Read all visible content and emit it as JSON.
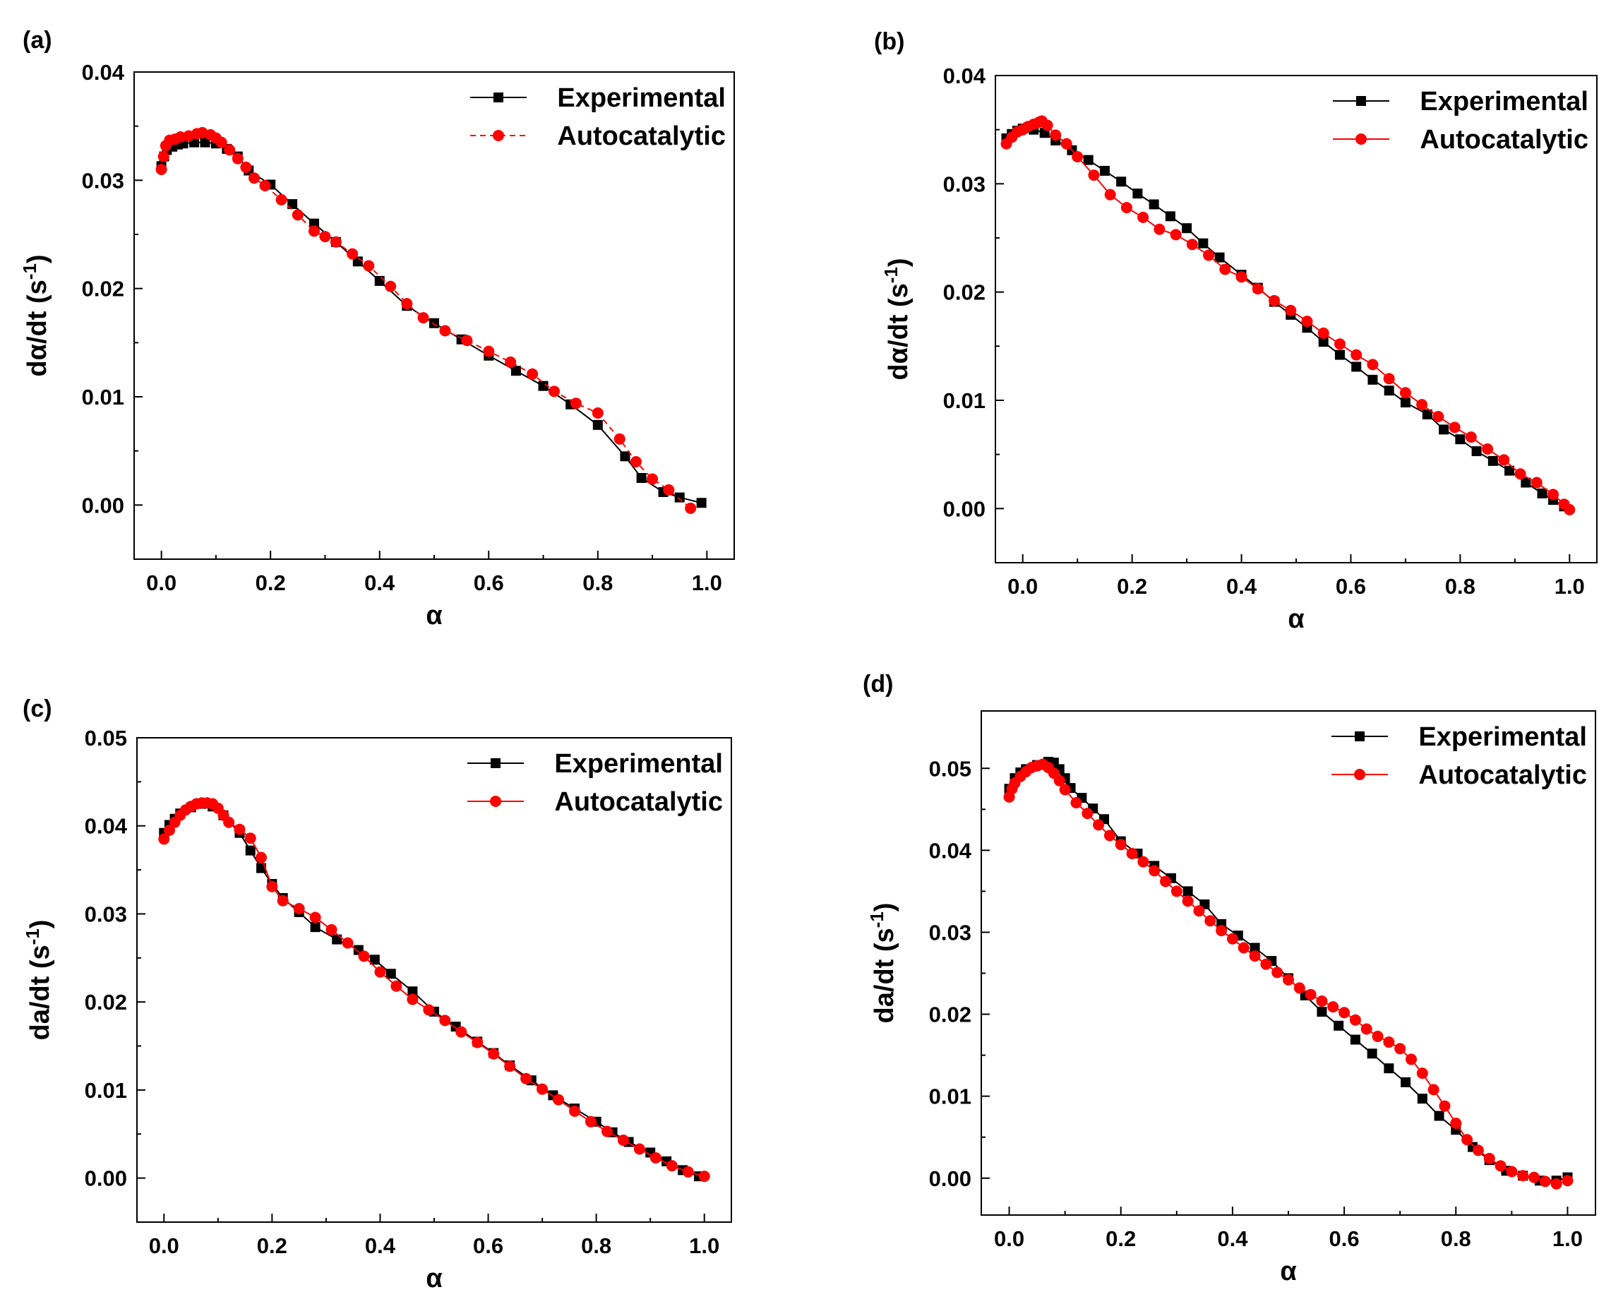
{
  "chart_data": [
    {
      "id": "a",
      "panel_label": "(a)",
      "type": "line",
      "xlabel": "α",
      "ylabel": "dα/dt (s",
      "ylabel_sup": "-1",
      "ylabel_close": ")",
      "xlim": [
        -0.05,
        1.05
      ],
      "ylim": [
        -0.005,
        0.04
      ],
      "xticks": [
        0.0,
        0.2,
        0.4,
        0.6,
        0.8,
        1.0
      ],
      "xtick_labels": [
        "0.0",
        "0.2",
        "0.4",
        "0.6",
        "0.8",
        "1.0"
      ],
      "yticks": [
        0.0,
        0.01,
        0.02,
        0.03,
        0.04
      ],
      "ytick_labels": [
        "0.00",
        "0.01",
        "0.02",
        "0.03",
        "0.04"
      ],
      "legend_position": "top-right",
      "series": [
        {
          "name": "Experimental",
          "color": "#000000",
          "marker": "square",
          "dashed": false,
          "x": [
            0.0,
            0.005,
            0.01,
            0.02,
            0.03,
            0.04,
            0.06,
            0.08,
            0.1,
            0.12,
            0.14,
            0.16,
            0.2,
            0.24,
            0.28,
            0.32,
            0.36,
            0.4,
            0.45,
            0.5,
            0.55,
            0.6,
            0.65,
            0.7,
            0.75,
            0.8,
            0.85,
            0.88,
            0.92,
            0.95,
            0.99
          ],
          "y": [
            0.0313,
            0.0322,
            0.0328,
            0.0331,
            0.0333,
            0.0334,
            0.0335,
            0.0335,
            0.0334,
            0.0329,
            0.0322,
            0.0309,
            0.0296,
            0.0278,
            0.026,
            0.0243,
            0.0225,
            0.0207,
            0.0184,
            0.0168,
            0.0153,
            0.0138,
            0.0124,
            0.011,
            0.0093,
            0.0074,
            0.0045,
            0.0025,
            0.0012,
            0.0007,
            0.0002
          ]
        },
        {
          "name": "Autocatalytic",
          "color": "#ff0000",
          "marker": "circle",
          "dashed": true,
          "x": [
            0.0,
            0.004,
            0.008,
            0.015,
            0.025,
            0.035,
            0.05,
            0.065,
            0.075,
            0.09,
            0.1,
            0.11,
            0.125,
            0.14,
            0.155,
            0.17,
            0.19,
            0.22,
            0.25,
            0.28,
            0.3,
            0.32,
            0.35,
            0.38,
            0.42,
            0.45,
            0.48,
            0.52,
            0.56,
            0.6,
            0.64,
            0.68,
            0.72,
            0.76,
            0.8,
            0.84,
            0.87,
            0.9,
            0.93,
            0.97
          ],
          "y": [
            0.031,
            0.0322,
            0.0332,
            0.0337,
            0.0338,
            0.034,
            0.0341,
            0.0343,
            0.0344,
            0.0342,
            0.0339,
            0.0335,
            0.0328,
            0.032,
            0.0312,
            0.0302,
            0.0295,
            0.0282,
            0.0268,
            0.0253,
            0.0248,
            0.0243,
            0.0232,
            0.0221,
            0.0202,
            0.0186,
            0.0173,
            0.0161,
            0.0152,
            0.0142,
            0.0132,
            0.0121,
            0.0105,
            0.0094,
            0.0085,
            0.0061,
            0.004,
            0.0024,
            0.0014,
            -0.0003
          ]
        }
      ]
    },
    {
      "id": "b",
      "panel_label": "(b)",
      "type": "line",
      "xlabel": "α",
      "ylabel": "dα/dt (s",
      "ylabel_sup": "-1",
      "ylabel_close": ")",
      "xlim": [
        -0.05,
        1.05
      ],
      "ylim": [
        -0.005,
        0.04
      ],
      "xticks": [
        0.0,
        0.2,
        0.4,
        0.6,
        0.8,
        1.0
      ],
      "xtick_labels": [
        "0.0",
        "0.2",
        "0.4",
        "0.6",
        "0.8",
        "1.0"
      ],
      "yticks": [
        0.0,
        0.01,
        0.02,
        0.03,
        0.04
      ],
      "ytick_labels": [
        "0.00",
        "0.01",
        "0.02",
        "0.03",
        "0.04"
      ],
      "legend_position": "top-right",
      "series": [
        {
          "name": "Experimental",
          "color": "#000000",
          "marker": "square",
          "dashed": false,
          "x": [
            -0.03,
            -0.02,
            -0.01,
            0.0,
            0.01,
            0.02,
            0.04,
            0.06,
            0.09,
            0.12,
            0.15,
            0.18,
            0.21,
            0.24,
            0.27,
            0.3,
            0.33,
            0.36,
            0.4,
            0.43,
            0.46,
            0.49,
            0.52,
            0.55,
            0.58,
            0.61,
            0.64,
            0.67,
            0.7,
            0.74,
            0.77,
            0.8,
            0.83,
            0.86,
            0.89,
            0.92,
            0.95,
            0.97,
            0.99
          ],
          "y": [
            0.0342,
            0.0346,
            0.0349,
            0.0351,
            0.0352,
            0.035,
            0.0347,
            0.034,
            0.0331,
            0.0322,
            0.0312,
            0.0302,
            0.0291,
            0.0281,
            0.027,
            0.0259,
            0.0245,
            0.0232,
            0.0216,
            0.0204,
            0.0191,
            0.0179,
            0.0167,
            0.0154,
            0.0142,
            0.0131,
            0.0119,
            0.0109,
            0.0098,
            0.0087,
            0.0073,
            0.0064,
            0.0053,
            0.0044,
            0.0035,
            0.0024,
            0.0014,
            0.0008,
            0.0002
          ]
        },
        {
          "name": "Autocatalytic",
          "color": "#ff0000",
          "marker": "circle",
          "dashed": false,
          "x": [
            -0.03,
            -0.02,
            -0.01,
            0.0,
            0.01,
            0.02,
            0.03,
            0.035,
            0.045,
            0.06,
            0.08,
            0.1,
            0.13,
            0.16,
            0.19,
            0.22,
            0.25,
            0.28,
            0.31,
            0.34,
            0.37,
            0.4,
            0.43,
            0.46,
            0.49,
            0.52,
            0.55,
            0.58,
            0.61,
            0.64,
            0.67,
            0.7,
            0.73,
            0.76,
            0.79,
            0.82,
            0.85,
            0.88,
            0.91,
            0.94,
            0.97,
            0.99,
            1.0
          ],
          "y": [
            0.0337,
            0.0343,
            0.0348,
            0.035,
            0.0353,
            0.0355,
            0.0357,
            0.0358,
            0.0354,
            0.0345,
            0.0337,
            0.0325,
            0.0308,
            0.029,
            0.0278,
            0.0269,
            0.0258,
            0.0253,
            0.0244,
            0.0234,
            0.0221,
            0.0214,
            0.0203,
            0.0192,
            0.0183,
            0.0173,
            0.0162,
            0.0152,
            0.0142,
            0.0133,
            0.012,
            0.0107,
            0.0096,
            0.0085,
            0.0075,
            0.0066,
            0.0055,
            0.0045,
            0.0032,
            0.0024,
            0.0013,
            0.0004,
            -0.0001
          ]
        }
      ]
    },
    {
      "id": "c",
      "panel_label": "(c)",
      "type": "line",
      "xlabel": "α",
      "ylabel": "da/dt (s",
      "ylabel_sup": "-1",
      "ylabel_close": ")",
      "xlim": [
        -0.05,
        1.05
      ],
      "ylim": [
        -0.005,
        0.05
      ],
      "xticks": [
        0.0,
        0.2,
        0.4,
        0.6,
        0.8,
        1.0
      ],
      "xtick_labels": [
        "0.0",
        "0.2",
        "0.4",
        "0.6",
        "0.8",
        "1.0"
      ],
      "yticks": [
        0.0,
        0.01,
        0.02,
        0.03,
        0.04,
        0.05
      ],
      "ytick_labels": [
        "0.00",
        "0.01",
        "0.02",
        "0.03",
        "0.04",
        "0.05"
      ],
      "legend_position": "top-right",
      "series": [
        {
          "name": "Experimental",
          "color": "#000000",
          "marker": "square",
          "dashed": false,
          "x": [
            0.0,
            0.01,
            0.02,
            0.03,
            0.05,
            0.07,
            0.09,
            0.11,
            0.14,
            0.16,
            0.18,
            0.2,
            0.22,
            0.25,
            0.28,
            0.32,
            0.36,
            0.39,
            0.42,
            0.46,
            0.5,
            0.54,
            0.58,
            0.61,
            0.64,
            0.68,
            0.72,
            0.76,
            0.8,
            0.83,
            0.86,
            0.9,
            0.93,
            0.96,
            0.99
          ],
          "y": [
            0.0392,
            0.0401,
            0.0408,
            0.0414,
            0.0421,
            0.0425,
            0.0422,
            0.0412,
            0.0392,
            0.0372,
            0.0352,
            0.0334,
            0.0318,
            0.0302,
            0.0285,
            0.0271,
            0.0259,
            0.0248,
            0.0232,
            0.0212,
            0.0189,
            0.0172,
            0.0155,
            0.0142,
            0.0128,
            0.0111,
            0.0094,
            0.0079,
            0.0064,
            0.0052,
            0.0041,
            0.0029,
            0.0019,
            0.0009,
            0.0002
          ]
        },
        {
          "name": "Autocatalytic",
          "color": "#ff0000",
          "marker": "circle",
          "dashed": false,
          "x": [
            0.0,
            0.01,
            0.02,
            0.03,
            0.04,
            0.05,
            0.06,
            0.07,
            0.08,
            0.09,
            0.1,
            0.11,
            0.12,
            0.14,
            0.16,
            0.18,
            0.2,
            0.22,
            0.25,
            0.28,
            0.31,
            0.34,
            0.37,
            0.4,
            0.43,
            0.46,
            0.49,
            0.52,
            0.55,
            0.58,
            0.61,
            0.64,
            0.67,
            0.7,
            0.73,
            0.76,
            0.79,
            0.82,
            0.85,
            0.88,
            0.91,
            0.94,
            0.97,
            1.0
          ],
          "y": [
            0.0385,
            0.0395,
            0.0404,
            0.0412,
            0.0418,
            0.0422,
            0.0425,
            0.0426,
            0.0426,
            0.0425,
            0.042,
            0.0412,
            0.0404,
            0.0396,
            0.0386,
            0.0364,
            0.0331,
            0.0315,
            0.0306,
            0.0296,
            0.0282,
            0.0267,
            0.0252,
            0.0234,
            0.0218,
            0.0203,
            0.0191,
            0.0179,
            0.0166,
            0.0154,
            0.0141,
            0.0127,
            0.0113,
            0.0101,
            0.0089,
            0.0076,
            0.0064,
            0.0053,
            0.0043,
            0.0033,
            0.0023,
            0.0014,
            0.0007,
            0.0002
          ]
        }
      ]
    },
    {
      "id": "d",
      "panel_label": "(d)",
      "type": "line",
      "xlabel": "α",
      "ylabel": "da/dt (s",
      "ylabel_sup": "-1",
      "ylabel_close": ")",
      "xlim": [
        -0.05,
        1.05
      ],
      "ylim": [
        -0.0045,
        0.057
      ],
      "xticks": [
        0.0,
        0.2,
        0.4,
        0.6,
        0.8,
        1.0
      ],
      "xtick_labels": [
        "0.0",
        "0.2",
        "0.4",
        "0.6",
        "0.8",
        "1.0"
      ],
      "yticks": [
        0.0,
        0.01,
        0.02,
        0.03,
        0.04,
        0.05
      ],
      "ytick_labels": [
        "0.00",
        "0.01",
        "0.02",
        "0.03",
        "0.04",
        "0.05"
      ],
      "legend_position": "top-right",
      "series": [
        {
          "name": "Experimental",
          "color": "#000000",
          "marker": "square",
          "dashed": false,
          "x": [
            0.0,
            0.01,
            0.02,
            0.03,
            0.05,
            0.07,
            0.08,
            0.09,
            0.1,
            0.11,
            0.13,
            0.15,
            0.17,
            0.2,
            0.23,
            0.26,
            0.29,
            0.32,
            0.35,
            0.38,
            0.41,
            0.44,
            0.47,
            0.5,
            0.53,
            0.56,
            0.59,
            0.62,
            0.65,
            0.68,
            0.71,
            0.74,
            0.77,
            0.8,
            0.83,
            0.86,
            0.89,
            0.92,
            0.95,
            0.98,
            1.0
          ],
          "y": [
            0.0475,
            0.0488,
            0.0495,
            0.0499,
            0.0504,
            0.0508,
            0.0507,
            0.0499,
            0.0488,
            0.0476,
            0.0464,
            0.0451,
            0.0438,
            0.0411,
            0.0396,
            0.0381,
            0.0366,
            0.035,
            0.0334,
            0.031,
            0.0296,
            0.0281,
            0.0265,
            0.0244,
            0.0223,
            0.0203,
            0.0186,
            0.0169,
            0.0152,
            0.0134,
            0.0117,
            0.0097,
            0.0076,
            0.0059,
            0.0038,
            0.0022,
            0.0009,
            0.0003,
            -0.0003,
            -0.0003,
            0.0001
          ]
        },
        {
          "name": "Autocatalytic",
          "color": "#ff0000",
          "marker": "circle",
          "dashed": false,
          "x": [
            0.0,
            0.005,
            0.01,
            0.02,
            0.03,
            0.04,
            0.05,
            0.06,
            0.07,
            0.08,
            0.09,
            0.1,
            0.12,
            0.14,
            0.16,
            0.18,
            0.2,
            0.22,
            0.24,
            0.26,
            0.28,
            0.3,
            0.32,
            0.34,
            0.36,
            0.38,
            0.4,
            0.42,
            0.44,
            0.46,
            0.48,
            0.5,
            0.52,
            0.54,
            0.56,
            0.58,
            0.6,
            0.62,
            0.64,
            0.66,
            0.68,
            0.7,
            0.72,
            0.74,
            0.76,
            0.78,
            0.8,
            0.82,
            0.84,
            0.86,
            0.88,
            0.9,
            0.92,
            0.94,
            0.96,
            0.98,
            1.0
          ],
          "y": [
            0.0465,
            0.0475,
            0.0482,
            0.049,
            0.0496,
            0.0501,
            0.0503,
            0.0505,
            0.0501,
            0.0494,
            0.0485,
            0.0474,
            0.0458,
            0.0445,
            0.0431,
            0.0418,
            0.0407,
            0.0396,
            0.0386,
            0.0375,
            0.0362,
            0.035,
            0.0338,
            0.0326,
            0.0314,
            0.0302,
            0.0292,
            0.0281,
            0.0271,
            0.0261,
            0.0251,
            0.0242,
            0.0232,
            0.0224,
            0.0216,
            0.0209,
            0.0202,
            0.0193,
            0.0182,
            0.0173,
            0.0166,
            0.0158,
            0.0145,
            0.0128,
            0.0108,
            0.0088,
            0.0067,
            0.0047,
            0.0034,
            0.0024,
            0.0015,
            0.0008,
            0.0003,
            0.0001,
            -0.0004,
            -0.0007,
            -0.0003
          ]
        }
      ]
    }
  ]
}
